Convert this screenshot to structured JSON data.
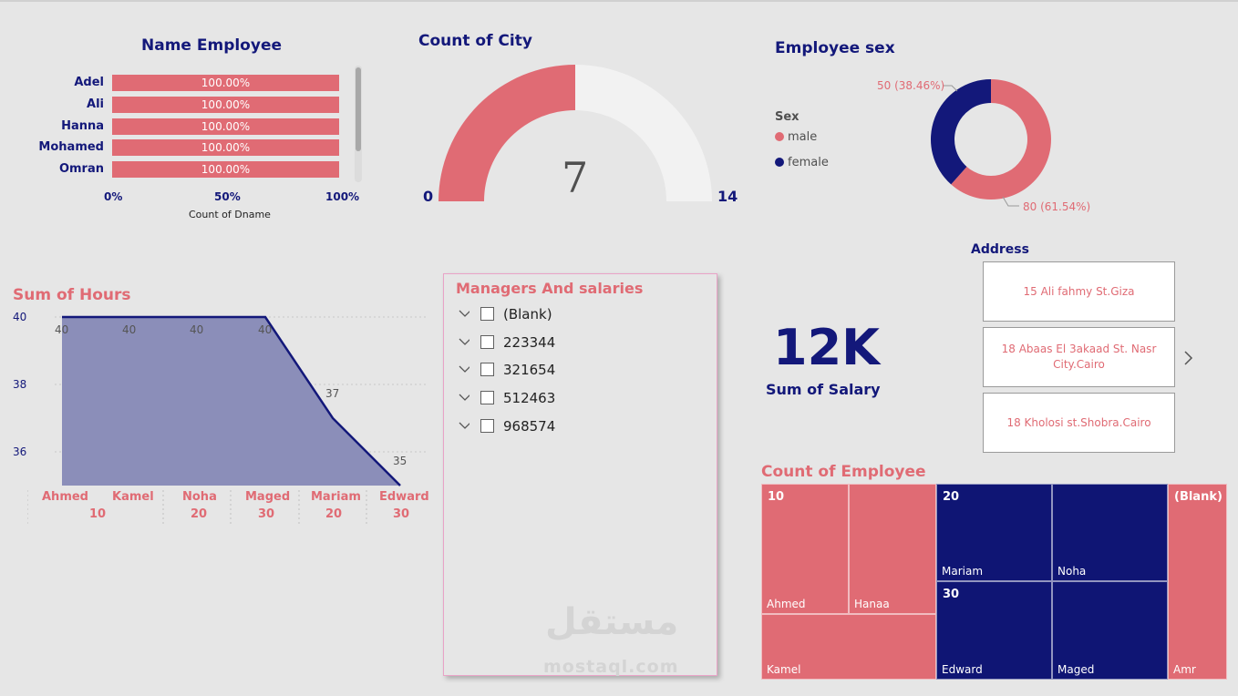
{
  "colors": {
    "navy": "#13187a",
    "pink": "#e06b74",
    "light": "#f2f2f2"
  },
  "name_employee": {
    "title": "Name Employee",
    "axis_label": "Count of Dname",
    "ticks": [
      "0%",
      "50%",
      "100%"
    ],
    "rows": [
      {
        "name": "Adel",
        "value_label": "100.00%",
        "value": 1.0
      },
      {
        "name": "Ali",
        "value_label": "100.00%",
        "value": 1.0
      },
      {
        "name": "Hanna",
        "value_label": "100.00%",
        "value": 1.0
      },
      {
        "name": "Mohamed",
        "value_label": "100.00%",
        "value": 1.0
      },
      {
        "name": "Omran",
        "value_label": "100.00%",
        "value": 1.0
      }
    ]
  },
  "count_city": {
    "title": "Count of City",
    "value": "7",
    "min": "0",
    "max": "14",
    "fraction": 0.5
  },
  "employee_sex": {
    "title": "Employee sex",
    "legend_title": "Sex",
    "legend": [
      {
        "label": "male",
        "color": "#e06b74"
      },
      {
        "label": "female",
        "color": "#13187a"
      }
    ],
    "female_label": "50 (38.46%)",
    "male_label": "80 (61.54%)"
  },
  "sum_hours": {
    "title": "Sum of Hours",
    "y_ticks": [
      "40",
      "38",
      "36"
    ],
    "x_names": [
      "Ahmed",
      "Kamel",
      "Noha",
      "Maged",
      "Mariam",
      "Edward"
    ],
    "x_groups": [
      "10",
      "20",
      "30",
      "20",
      "30"
    ],
    "point_labels": [
      "40",
      "40",
      "40",
      "40",
      "37",
      "35"
    ]
  },
  "managers": {
    "title": "Managers And salaries",
    "items": [
      "(Blank)",
      "223344",
      "321654",
      "512463",
      "968574"
    ]
  },
  "salary": {
    "value": "12K",
    "label": "Sum of Salary"
  },
  "address": {
    "title": "Address",
    "items": [
      "15 Ali fahmy St.Giza",
      "18 Abaas El 3akaad St. Nasr City.Cairo",
      "18 Kholosi st.Shobra.Cairo"
    ]
  },
  "count_employee": {
    "title": "Count of Employee",
    "groups": [
      "10",
      "20",
      "30",
      "(Blank)"
    ],
    "names": [
      "Ahmed",
      "Hanaa",
      "Kamel",
      "Mariam",
      "Noha",
      "Edward",
      "Maged",
      "Amr"
    ]
  },
  "chart_data": [
    {
      "type": "bar",
      "title": "Name Employee",
      "xlabel": "Count of Dname",
      "categories": [
        "Adel",
        "Ali",
        "Hanna",
        "Mohamed",
        "Omran"
      ],
      "values": [
        1.0,
        1.0,
        1.0,
        1.0,
        1.0
      ],
      "data_labels": [
        "100.00%",
        "100.00%",
        "100.00%",
        "100.00%",
        "100.00%"
      ],
      "xlim": [
        0,
        1
      ]
    },
    {
      "type": "area",
      "title": "Sum of Hours",
      "categories": [
        "Ahmed",
        "Kamel",
        "Noha",
        "Maged",
        "Mariam",
        "Edward"
      ],
      "values": [
        40,
        40,
        40,
        40,
        37,
        35
      ],
      "ylim": [
        35,
        40
      ],
      "grid": true
    },
    {
      "type": "pie",
      "title": "Employee sex",
      "categories": [
        "male",
        "female"
      ],
      "values": [
        80,
        50
      ],
      "legend": "left"
    }
  ],
  "watermark": {
    "arabic": "مستقل",
    "latin": "mostaql.com"
  }
}
